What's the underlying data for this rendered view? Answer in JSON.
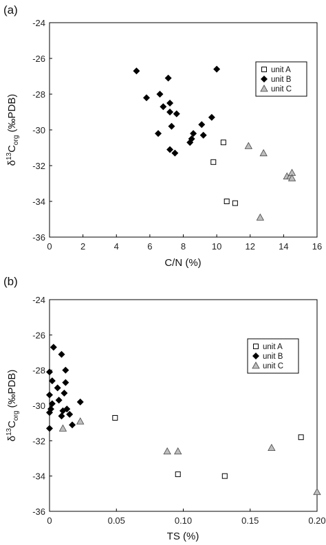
{
  "chart_data": [
    {
      "type": "scatter",
      "panel_label": "(a)",
      "xlabel": "C/N (%)",
      "ylabel": "δ13Corg (‰PDB)",
      "xlim": [
        0,
        16
      ],
      "ylim": [
        -36,
        -24
      ],
      "xticks": [
        "0",
        "2",
        "4",
        "6",
        "8",
        "10",
        "12",
        "14",
        "16"
      ],
      "yticks": [
        "-24",
        "-26",
        "-28",
        "-30",
        "-32",
        "-34",
        "-36"
      ],
      "grid": false,
      "legend_position": "top-right",
      "series": [
        {
          "name": "unit A",
          "marker": "open-square",
          "points": [
            [
              10.4,
              -30.7
            ],
            [
              9.8,
              -31.8
            ],
            [
              10.6,
              -34.0
            ],
            [
              11.1,
              -34.1
            ]
          ]
        },
        {
          "name": "unit B",
          "marker": "diamond",
          "points": [
            [
              5.2,
              -26.7
            ],
            [
              7.1,
              -27.1
            ],
            [
              10.0,
              -26.6
            ],
            [
              6.6,
              -28.0
            ],
            [
              5.8,
              -28.2
            ],
            [
              7.2,
              -28.5
            ],
            [
              6.8,
              -28.7
            ],
            [
              7.2,
              -29.0
            ],
            [
              7.6,
              -29.1
            ],
            [
              9.7,
              -29.3
            ],
            [
              7.3,
              -29.8
            ],
            [
              9.1,
              -29.7
            ],
            [
              6.5,
              -30.2
            ],
            [
              9.2,
              -30.3
            ],
            [
              8.6,
              -30.2
            ],
            [
              8.5,
              -30.5
            ],
            [
              8.4,
              -30.7
            ],
            [
              7.2,
              -31.1
            ],
            [
              7.5,
              -31.3
            ]
          ]
        },
        {
          "name": "unit C",
          "marker": "gray-triangle",
          "points": [
            [
              11.9,
              -30.9
            ],
            [
              12.8,
              -31.3
            ],
            [
              14.2,
              -32.6
            ],
            [
              14.4,
              -32.6
            ],
            [
              14.5,
              -32.4
            ],
            [
              14.5,
              -32.7
            ],
            [
              12.6,
              -34.9
            ]
          ]
        }
      ]
    },
    {
      "type": "scatter",
      "panel_label": "(b)",
      "xlabel": "TS (%)",
      "ylabel": "δ13Corg (‰PDB)",
      "xlim": [
        0,
        0.2
      ],
      "ylim": [
        -36,
        -24
      ],
      "xticks": [
        "0",
        "0.05",
        "0.10",
        "0.15",
        "0.20"
      ],
      "yticks": [
        "-24",
        "-26",
        "-28",
        "-30",
        "-32",
        "-34",
        "-36"
      ],
      "grid": false,
      "legend_position": "top-right",
      "series": [
        {
          "name": "unit A",
          "marker": "open-square",
          "points": [
            [
              0.049,
              -30.7
            ],
            [
              0.096,
              -33.9
            ],
            [
              0.131,
              -34.0
            ],
            [
              0.188,
              -31.8
            ]
          ]
        },
        {
          "name": "unit B",
          "marker": "diamond",
          "points": [
            [
              0.003,
              -26.7
            ],
            [
              0.009,
              -27.1
            ],
            [
              0.0,
              -28.1
            ],
            [
              0.012,
              -28.0
            ],
            [
              0.002,
              -28.6
            ],
            [
              0.006,
              -29.0
            ],
            [
              0.012,
              -28.7
            ],
            [
              0.0,
              -29.4
            ],
            [
              0.011,
              -29.3
            ],
            [
              0.002,
              -29.9
            ],
            [
              0.007,
              -29.7
            ],
            [
              0.001,
              -30.2
            ],
            [
              0.013,
              -30.2
            ],
            [
              0.0,
              -30.4
            ],
            [
              0.023,
              -29.8
            ],
            [
              0.01,
              -30.3
            ],
            [
              0.009,
              -30.6
            ],
            [
              0.015,
              -30.5
            ],
            [
              0.017,
              -31.1
            ],
            [
              0.0,
              -31.3
            ]
          ]
        },
        {
          "name": "unit C",
          "marker": "gray-triangle",
          "points": [
            [
              0.023,
              -30.9
            ],
            [
              0.01,
              -31.3
            ],
            [
              0.088,
              -32.6
            ],
            [
              0.096,
              -32.6
            ],
            [
              0.166,
              -32.4
            ],
            [
              0.2,
              -34.9
            ]
          ]
        }
      ]
    }
  ]
}
